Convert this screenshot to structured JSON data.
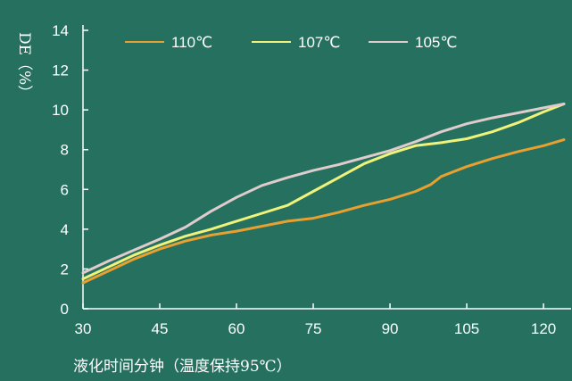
{
  "chart_data": {
    "type": "line",
    "xlabel": "液化时间分钟（温度保持95℃）",
    "ylabel": "DE（%）",
    "xlim": [
      30,
      124
    ],
    "ylim": [
      0,
      14
    ],
    "x_ticks": [
      30,
      45,
      60,
      75,
      90,
      105,
      120
    ],
    "y_ticks": [
      0,
      2,
      4,
      6,
      8,
      10,
      12,
      14
    ],
    "grid": false,
    "legend_position": "top-left",
    "series": [
      {
        "name": "110℃",
        "color": "#e8a030",
        "x": [
          30,
          35,
          40,
          45,
          50,
          55,
          60,
          65,
          70,
          75,
          80,
          85,
          90,
          95,
          98,
          100,
          105,
          110,
          115,
          120,
          124
        ],
        "y": [
          1.3,
          1.9,
          2.5,
          3.0,
          3.4,
          3.7,
          3.9,
          4.15,
          4.4,
          4.55,
          4.85,
          5.2,
          5.5,
          5.9,
          6.25,
          6.65,
          7.15,
          7.55,
          7.9,
          8.2,
          8.5
        ]
      },
      {
        "name": "107℃",
        "color": "#f0f27a",
        "x": [
          30,
          35,
          40,
          45,
          50,
          55,
          60,
          65,
          70,
          75,
          80,
          85,
          90,
          95,
          100,
          105,
          110,
          115,
          120,
          124
        ],
        "y": [
          1.5,
          2.1,
          2.7,
          3.2,
          3.65,
          4.0,
          4.4,
          4.8,
          5.2,
          5.9,
          6.6,
          7.3,
          7.8,
          8.2,
          8.35,
          8.55,
          8.9,
          9.35,
          9.9,
          10.3
        ]
      },
      {
        "name": "105℃",
        "color": "#e0cccc",
        "x": [
          30,
          35,
          40,
          45,
          50,
          55,
          60,
          65,
          70,
          75,
          80,
          85,
          90,
          95,
          100,
          105,
          110,
          115,
          120,
          124
        ],
        "y": [
          1.8,
          2.4,
          2.95,
          3.5,
          4.1,
          4.9,
          5.6,
          6.2,
          6.6,
          6.95,
          7.25,
          7.6,
          7.95,
          8.4,
          8.9,
          9.3,
          9.6,
          9.85,
          10.1,
          10.3
        ]
      }
    ]
  }
}
